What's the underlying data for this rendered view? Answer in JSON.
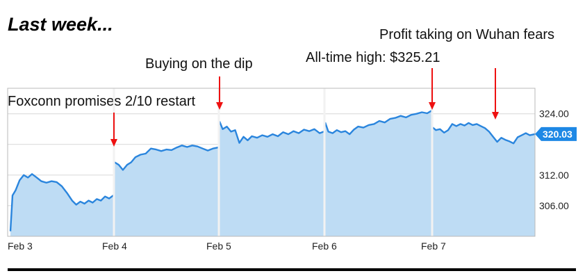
{
  "title": "Last week...",
  "annotations": [
    {
      "text": "Foxconn promises 2/10 restart"
    },
    {
      "text": "Buying on the dip"
    },
    {
      "text": "All-time high: $325.21"
    },
    {
      "text": "Profit taking on Wuhan fears"
    }
  ],
  "colors": {
    "line": "#2a85dd",
    "fill": "#bedcf4",
    "grid": "#d7d7d7",
    "arrow": "#ee1111",
    "badge": "#1e88e5"
  },
  "chart_data": {
    "type": "area",
    "title": "Last week...",
    "xlabel": "",
    "ylabel": "",
    "ylim": [
      300,
      329
    ],
    "y_ticks": [
      306,
      312,
      324
    ],
    "y_tick_labels": [
      "306.00",
      "312.00",
      "324.00"
    ],
    "last_value": 320.03,
    "last_value_label": "320.03",
    "grid": true,
    "days": [
      {
        "label": "Feb 3",
        "points": [
          [
            0,
            301
          ],
          [
            0.02,
            308
          ],
          [
            0.05,
            309
          ],
          [
            0.09,
            311
          ],
          [
            0.13,
            312
          ],
          [
            0.17,
            311.5
          ],
          [
            0.21,
            312.2
          ],
          [
            0.25,
            311.6
          ],
          [
            0.3,
            310.8
          ],
          [
            0.35,
            310.5
          ],
          [
            0.4,
            310.8
          ],
          [
            0.45,
            310.6
          ],
          [
            0.5,
            309.8
          ],
          [
            0.55,
            308.5
          ],
          [
            0.6,
            307
          ],
          [
            0.64,
            306.2
          ],
          [
            0.68,
            306.8
          ],
          [
            0.72,
            306.4
          ],
          [
            0.76,
            307
          ],
          [
            0.8,
            306.6
          ],
          [
            0.84,
            307.3
          ],
          [
            0.88,
            307
          ],
          [
            0.92,
            307.8
          ],
          [
            0.96,
            307.4
          ],
          [
            1,
            308
          ]
        ]
      },
      {
        "label": "Feb 4",
        "points": [
          [
            0,
            314.5
          ],
          [
            0.04,
            314
          ],
          [
            0.08,
            313
          ],
          [
            0.12,
            314
          ],
          [
            0.16,
            314.5
          ],
          [
            0.2,
            315.5
          ],
          [
            0.25,
            316
          ],
          [
            0.3,
            316.2
          ],
          [
            0.35,
            317.2
          ],
          [
            0.4,
            317
          ],
          [
            0.45,
            316.7
          ],
          [
            0.5,
            317
          ],
          [
            0.55,
            316.9
          ],
          [
            0.6,
            317.4
          ],
          [
            0.65,
            317.8
          ],
          [
            0.7,
            317.5
          ],
          [
            0.75,
            317.8
          ],
          [
            0.8,
            317.6
          ],
          [
            0.85,
            317.2
          ],
          [
            0.9,
            316.8
          ],
          [
            0.95,
            317.2
          ],
          [
            1,
            317.4
          ]
        ]
      },
      {
        "label": "Feb 5",
        "points": [
          [
            0,
            322.5
          ],
          [
            0.03,
            321
          ],
          [
            0.07,
            321.5
          ],
          [
            0.11,
            320.5
          ],
          [
            0.15,
            320.8
          ],
          [
            0.19,
            318.3
          ],
          [
            0.23,
            319.5
          ],
          [
            0.27,
            318.8
          ],
          [
            0.31,
            319.6
          ],
          [
            0.36,
            319.3
          ],
          [
            0.41,
            319.8
          ],
          [
            0.46,
            319.5
          ],
          [
            0.51,
            320
          ],
          [
            0.56,
            319.6
          ],
          [
            0.61,
            320.4
          ],
          [
            0.66,
            320
          ],
          [
            0.71,
            320.6
          ],
          [
            0.76,
            320.2
          ],
          [
            0.81,
            320.9
          ],
          [
            0.86,
            320.6
          ],
          [
            0.91,
            321
          ],
          [
            0.96,
            320.2
          ],
          [
            1,
            320.5
          ]
        ]
      },
      {
        "label": "Feb 6",
        "points": [
          [
            0,
            322.3
          ],
          [
            0.03,
            320.5
          ],
          [
            0.07,
            320.2
          ],
          [
            0.11,
            320.8
          ],
          [
            0.15,
            320.4
          ],
          [
            0.19,
            320.6
          ],
          [
            0.23,
            320
          ],
          [
            0.27,
            320.9
          ],
          [
            0.31,
            321.5
          ],
          [
            0.36,
            321.3
          ],
          [
            0.41,
            321.8
          ],
          [
            0.46,
            322
          ],
          [
            0.51,
            322.6
          ],
          [
            0.56,
            322.3
          ],
          [
            0.61,
            323
          ],
          [
            0.66,
            323.2
          ],
          [
            0.71,
            323.6
          ],
          [
            0.76,
            323.3
          ],
          [
            0.81,
            323.8
          ],
          [
            0.86,
            324
          ],
          [
            0.91,
            324.3
          ],
          [
            0.96,
            324.1
          ],
          [
            1,
            324.6
          ]
        ]
      },
      {
        "label": "Feb 7",
        "points": [
          [
            0,
            321.3
          ],
          [
            0.03,
            320.8
          ],
          [
            0.07,
            321
          ],
          [
            0.11,
            320.3
          ],
          [
            0.15,
            320.8
          ],
          [
            0.19,
            322
          ],
          [
            0.23,
            321.6
          ],
          [
            0.27,
            322
          ],
          [
            0.31,
            321.7
          ],
          [
            0.35,
            322.2
          ],
          [
            0.39,
            321.8
          ],
          [
            0.43,
            322
          ],
          [
            0.47,
            321.6
          ],
          [
            0.51,
            321.2
          ],
          [
            0.55,
            320.5
          ],
          [
            0.59,
            319.5
          ],
          [
            0.63,
            318.5
          ],
          [
            0.67,
            319.3
          ],
          [
            0.71,
            318.9
          ],
          [
            0.75,
            318.6
          ],
          [
            0.79,
            318.2
          ],
          [
            0.83,
            319.4
          ],
          [
            0.87,
            319.8
          ],
          [
            0.91,
            320.2
          ],
          [
            0.95,
            319.8
          ],
          [
            1,
            320.03
          ]
        ]
      }
    ]
  }
}
